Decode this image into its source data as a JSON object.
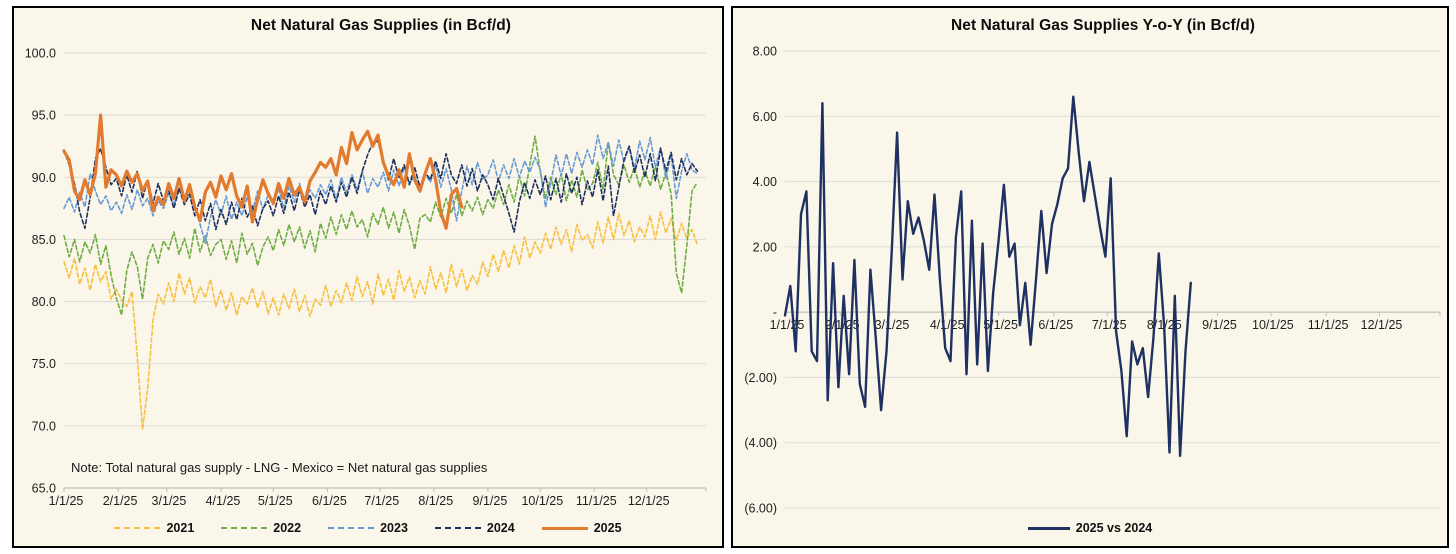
{
  "panel_background": "#FBF6EA",
  "grid_color": "#DBDBD6",
  "axis_color": "#BFBFBF",
  "chart_data": [
    {
      "type": "line",
      "title": "Net Natural Gas Supplies (in Bcf/d)",
      "note": "Note: Total natural gas supply - LNG - Mexico = Net natural gas supplies",
      "ylabel": "",
      "xlabel": "",
      "ylim": [
        65,
        100
      ],
      "grid": "horizontal",
      "legend_position": "bottom",
      "y_ticks": [
        {
          "value": 100,
          "label": "100.0"
        },
        {
          "value": 95,
          "label": "95.0"
        },
        {
          "value": 90,
          "label": "90.0"
        },
        {
          "value": 85,
          "label": "85.0"
        },
        {
          "value": 80,
          "label": "80.0"
        },
        {
          "value": 75,
          "label": "75.0"
        },
        {
          "value": 70,
          "label": "70.0"
        },
        {
          "value": 65,
          "label": "65.0"
        }
      ],
      "x_tick_labels": [
        "1/1/25",
        "2/1/25",
        "3/1/25",
        "4/1/25",
        "5/1/25",
        "6/1/25",
        "7/1/25",
        "8/1/25",
        "9/1/25",
        "10/1/25",
        "11/1/25",
        "12/1/25"
      ],
      "x_label_days": [
        0,
        31,
        59,
        90,
        120,
        151,
        181,
        212,
        243,
        273,
        304,
        334
      ],
      "x_total_days": 368,
      "sample_interval_days": 3,
      "series": [
        {
          "name": "2021",
          "color": "#F7C043",
          "style": "dashed",
          "width": 1.6,
          "values": [
            83.2,
            81.9,
            83.5,
            81.4,
            82.7,
            80.9,
            83.0,
            81.6,
            82.4,
            80.2,
            81.0,
            80.1,
            79.6,
            80.8,
            75.5,
            69.7,
            73.0,
            78.5,
            80.6,
            79.8,
            81.5,
            80.0,
            82.3,
            80.6,
            81.9,
            79.9,
            81.2,
            80.3,
            81.8,
            79.6,
            80.9,
            79.3,
            80.7,
            78.9,
            80.4,
            79.8,
            81.1,
            79.5,
            80.8,
            79.0,
            80.3,
            78.9,
            80.6,
            79.4,
            81.0,
            79.2,
            80.5,
            78.8,
            80.2,
            79.7,
            81.3,
            79.6,
            80.9,
            79.9,
            81.5,
            80.1,
            82.0,
            80.4,
            81.6,
            79.8,
            82.2,
            80.5,
            81.8,
            80.1,
            82.5,
            80.8,
            82.0,
            80.3,
            81.7,
            80.6,
            82.8,
            81.0,
            82.3,
            80.7,
            83.0,
            81.2,
            82.6,
            80.9,
            82.1,
            81.4,
            83.2,
            82.0,
            83.8,
            82.4,
            84.1,
            82.7,
            84.5,
            83.0,
            85.2,
            83.5,
            84.8,
            83.9,
            85.5,
            84.2,
            86.0,
            84.6,
            85.8,
            84.0,
            86.2,
            84.9,
            85.4,
            84.3,
            86.4,
            84.7,
            86.8,
            85.0,
            87.1,
            85.3,
            86.5,
            84.8,
            86.0,
            85.2,
            86.9,
            85.0,
            87.2,
            85.5,
            86.7,
            84.9,
            86.3,
            85.1,
            85.8,
            84.6
          ]
        },
        {
          "name": "2022",
          "color": "#6FAD47",
          "style": "dashed",
          "width": 1.6,
          "values": [
            85.3,
            83.6,
            85.0,
            83.2,
            84.8,
            83.9,
            85.4,
            83.0,
            84.5,
            82.1,
            80.3,
            78.9,
            82.5,
            84.0,
            82.8,
            80.2,
            83.5,
            84.6,
            83.1,
            84.9,
            84.2,
            85.6,
            83.8,
            85.1,
            83.5,
            85.9,
            84.0,
            85.3,
            83.7,
            84.6,
            85.0,
            83.4,
            84.9,
            83.1,
            85.5,
            83.8,
            84.7,
            82.9,
            84.4,
            85.2,
            84.1,
            85.8,
            84.5,
            86.2,
            84.8,
            86.0,
            84.3,
            85.7,
            84.0,
            86.3,
            85.1,
            86.8,
            85.4,
            87.0,
            85.8,
            87.3,
            86.0,
            86.6,
            85.2,
            87.1,
            86.2,
            87.6,
            85.9,
            87.2,
            85.5,
            87.4,
            86.1,
            84.2,
            86.7,
            87.0,
            86.4,
            88.0,
            86.8,
            88.3,
            87.1,
            88.6,
            86.9,
            88.1,
            87.3,
            88.4,
            87.0,
            88.2,
            87.5,
            89.0,
            87.8,
            89.4,
            88.0,
            90.1,
            88.5,
            91.0,
            93.3,
            90.4,
            88.3,
            90.0,
            88.6,
            90.3,
            88.1,
            89.8,
            88.4,
            90.6,
            89.0,
            89.5,
            91.2,
            89.0,
            92.8,
            90.2,
            89.4,
            91.0,
            89.6,
            90.8,
            89.2,
            90.5,
            89.3,
            90.9,
            89.0,
            90.4,
            88.7,
            82.3,
            80.7,
            84.5,
            88.9,
            89.6
          ]
        },
        {
          "name": "2023",
          "color": "#689BD6",
          "style": "dashed",
          "width": 1.6,
          "values": [
            87.5,
            88.4,
            87.2,
            88.8,
            87.6,
            90.3,
            88.9,
            87.8,
            88.5,
            87.3,
            88.0,
            87.1,
            88.6,
            87.4,
            89.0,
            87.7,
            88.3,
            86.9,
            88.1,
            87.5,
            88.7,
            87.9,
            89.2,
            88.0,
            88.8,
            87.6,
            86.2,
            84.7,
            86.8,
            88.2,
            87.0,
            88.5,
            86.6,
            88.0,
            86.9,
            88.4,
            87.2,
            88.9,
            87.4,
            88.6,
            87.8,
            89.1,
            87.5,
            89.3,
            88.0,
            89.5,
            87.9,
            89.0,
            88.3,
            89.4,
            88.6,
            89.8,
            88.2,
            90.0,
            88.8,
            90.2,
            89.0,
            90.5,
            88.7,
            89.9,
            89.2,
            90.4,
            88.9,
            90.6,
            89.3,
            90.8,
            89.5,
            90.1,
            88.8,
            90.3,
            89.6,
            91.0,
            89.2,
            90.7,
            89.0,
            86.5,
            88.9,
            90.9,
            89.4,
            91.2,
            89.8,
            90.2,
            91.4,
            89.7,
            91.0,
            89.9,
            91.5,
            90.0,
            91.3,
            90.4,
            91.6,
            90.6,
            87.6,
            89.5,
            91.8,
            90.1,
            91.9,
            90.3,
            92.0,
            90.8,
            92.2,
            91.0,
            93.4,
            91.5,
            92.8,
            90.9,
            93.0,
            91.2,
            92.5,
            90.7,
            92.9,
            91.4,
            93.2,
            90.8,
            92.4,
            89.9,
            91.8,
            88.3,
            90.5,
            91.9,
            90.6,
            90.3
          ]
        },
        {
          "name": "2024",
          "color": "#1F3160",
          "style": "dashed",
          "width": 1.6,
          "values": [
            92.2,
            91.0,
            89.5,
            87.2,
            85.9,
            88.4,
            91.5,
            92.3,
            90.8,
            89.4,
            89.9,
            88.5,
            90.2,
            88.8,
            90.5,
            88.3,
            89.8,
            87.9,
            89.5,
            88.1,
            88.9,
            87.5,
            89.1,
            87.8,
            88.6,
            86.9,
            88.2,
            86.5,
            87.9,
            85.8,
            87.4,
            86.2,
            88.0,
            86.6,
            88.3,
            86.8,
            87.7,
            86.1,
            87.5,
            88.1,
            86.9,
            88.5,
            87.1,
            88.8,
            87.3,
            89.0,
            87.6,
            88.6,
            87.0,
            88.9,
            87.8,
            89.3,
            88.0,
            89.6,
            88.4,
            90.0,
            88.7,
            90.5,
            91.8,
            92.8,
            92.9,
            91.2,
            89.8,
            91.5,
            89.9,
            91.0,
            89.4,
            90.8,
            89.2,
            90.4,
            89.8,
            91.3,
            89.9,
            91.9,
            90.2,
            89.5,
            91.0,
            89.3,
            90.7,
            88.9,
            90.2,
            89.4,
            88.2,
            89.9,
            88.5,
            87.1,
            85.6,
            88.0,
            89.6,
            88.3,
            89.8,
            88.6,
            90.1,
            88.2,
            89.9,
            88.0,
            90.3,
            88.7,
            90.0,
            87.8,
            89.7,
            88.4,
            90.6,
            88.1,
            90.9,
            86.9,
            89.2,
            91.4,
            92.5,
            90.4,
            91.8,
            90.0,
            91.9,
            89.7,
            92.3,
            90.5,
            92.0,
            89.8,
            91.5,
            90.2,
            91.1,
            90.5
          ]
        },
        {
          "name": "2025",
          "color": "#E07B30",
          "style": "solid",
          "width": 3.2,
          "values": [
            92.1,
            91.4,
            88.9,
            88.2,
            89.8,
            88.6,
            90.3,
            95.0,
            89.2,
            90.6,
            90.2,
            89.3,
            90.5,
            89.6,
            90.3,
            88.9,
            89.7,
            87.3,
            88.4,
            87.8,
            89.5,
            88.3,
            89.9,
            88.1,
            89.4,
            87.6,
            86.5,
            88.8,
            89.6,
            88.4,
            90.1,
            89.0,
            90.3,
            88.5,
            87.6,
            89.3,
            86.4,
            88.2,
            89.8,
            88.7,
            87.9,
            89.5,
            88.3,
            89.9,
            88.6,
            89.2,
            88.0,
            89.7,
            90.4,
            91.2,
            90.8,
            91.5,
            90.2,
            92.4,
            91.1,
            93.6,
            92.2,
            93.0,
            93.7,
            92.5,
            93.4,
            91.2,
            90.1,
            89.4,
            90.6,
            89.2,
            91.9,
            89.8,
            88.9,
            90.3,
            91.5,
            89.8,
            87.2,
            85.9,
            88.6,
            89.1,
            87.6
          ]
        }
      ]
    },
    {
      "type": "line",
      "title": "Net Natural Gas Supplies Y-o-Y (in Bcf/d)",
      "ylabel": "",
      "xlabel": "",
      "ylim": [
        -6,
        8
      ],
      "axis_cross": 0,
      "grid": "horizontal",
      "legend_position": "bottom",
      "y_ticks": [
        {
          "value": 8,
          "label": "8.00"
        },
        {
          "value": 6,
          "label": "6.00"
        },
        {
          "value": 4,
          "label": "4.00"
        },
        {
          "value": 2,
          "label": "2.00"
        },
        {
          "value": 0,
          "label": "-"
        },
        {
          "value": -2,
          "label": "(2.00)"
        },
        {
          "value": -4,
          "label": "(4.00)"
        },
        {
          "value": -6,
          "label": "(6.00)"
        }
      ],
      "x_tick_labels": [
        "1/1/25",
        "2/1/25",
        "3/1/25",
        "4/1/25",
        "5/1/25",
        "6/1/25",
        "7/1/25",
        "8/1/25",
        "9/1/25",
        "10/1/25",
        "11/1/25",
        "12/1/25"
      ],
      "x_label_days": [
        0,
        31,
        59,
        90,
        120,
        151,
        181,
        212,
        243,
        273,
        304,
        334
      ],
      "x_total_days": 368,
      "sample_interval_days": 3,
      "series": [
        {
          "name": "2025 vs 2024",
          "color": "#1F3160",
          "style": "solid",
          "width": 2.4,
          "values": [
            -0.1,
            0.8,
            -1.2,
            3.0,
            3.7,
            -1.2,
            -1.5,
            6.4,
            -2.7,
            1.5,
            -2.3,
            0.5,
            -1.9,
            1.6,
            -2.2,
            -2.9,
            1.3,
            -0.8,
            -3.0,
            -1.2,
            1.9,
            5.5,
            1.0,
            3.4,
            2.4,
            2.9,
            2.2,
            1.3,
            3.6,
            1.0,
            -1.1,
            -1.5,
            2.3,
            3.7,
            -1.9,
            2.8,
            -1.6,
            2.1,
            -1.8,
            0.6,
            2.2,
            3.9,
            1.7,
            2.1,
            -0.4,
            0.9,
            -1.0,
            1.0,
            3.1,
            1.2,
            2.7,
            3.3,
            4.1,
            4.4,
            6.6,
            4.9,
            3.4,
            4.6,
            3.6,
            2.6,
            1.7,
            4.1,
            -0.6,
            -1.8,
            -3.8,
            -0.9,
            -1.6,
            -1.1,
            -2.6,
            -0.8,
            1.8,
            -0.4,
            -4.3,
            0.5,
            -4.4,
            -1.2,
            0.9
          ]
        }
      ]
    }
  ]
}
